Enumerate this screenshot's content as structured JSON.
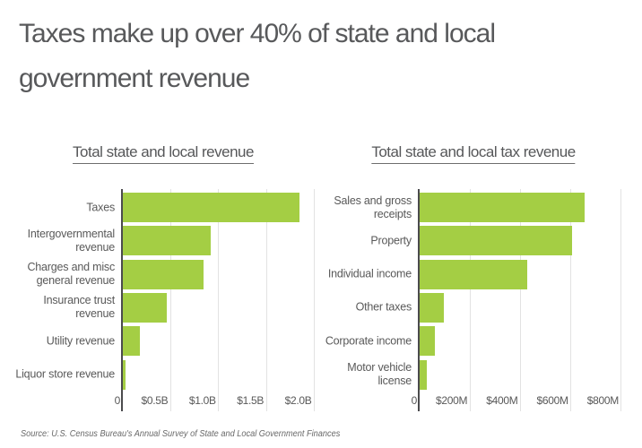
{
  "title": {
    "line1": "Taxes make up over 40% of state and local",
    "line2": "government revenue"
  },
  "source": "Source:  U.S. Census Bureau's Annual Survey of State and Local Government Finances",
  "colors": {
    "bar": "#a4ce44",
    "axis": "#4b4b4d",
    "grid": "#e2e2e2",
    "text": "#595959",
    "title_text": "#58595b"
  },
  "chart_data": [
    {
      "type": "bar",
      "orientation": "horizontal",
      "title": "Total state and local revenue",
      "unit": "billions of dollars",
      "categories": [
        "Taxes",
        "Intergovernmental revenue",
        "Charges and misc general revenue",
        "Insurance trust revenue",
        "Utility revenue",
        "Liquor store revenue"
      ],
      "label_lines": [
        [
          "Taxes"
        ],
        [
          "Intergovernmental",
          "revenue"
        ],
        [
          "Charges and misc",
          "general revenue"
        ],
        [
          "Insurance trust",
          "revenue"
        ],
        [
          "Utility revenue"
        ],
        [
          "Liquor store revenue"
        ]
      ],
      "values": [
        1.85,
        0.92,
        0.84,
        0.46,
        0.18,
        0.03
      ],
      "ticks": [
        {
          "value": 0,
          "label": "0"
        },
        {
          "value": 0.5,
          "label": "$0.5B"
        },
        {
          "value": 1.0,
          "label": "$1.0B"
        },
        {
          "value": 1.5,
          "label": "$1.5B"
        },
        {
          "value": 2.0,
          "label": "$2.0B"
        }
      ],
      "xmax": 2.08,
      "xlabel": "",
      "grid": true,
      "legend": false
    },
    {
      "type": "bar",
      "orientation": "horizontal",
      "title": "Total state and local tax revenue",
      "unit": "millions of dollars",
      "categories": [
        "Sales and gross receipts",
        "Property",
        "Individual income",
        "Other taxes",
        "Corporate income",
        "Motor vehicle license"
      ],
      "label_lines": [
        [
          "Sales and gross",
          "receipts"
        ],
        [
          "Property"
        ],
        [
          "Individual income"
        ],
        [
          "Other taxes"
        ],
        [
          "Corporate income"
        ],
        [
          "Motor vehicle",
          "license"
        ]
      ],
      "values": [
        655,
        605,
        425,
        95,
        60,
        30
      ],
      "ticks": [
        {
          "value": 0,
          "label": "0"
        },
        {
          "value": 200,
          "label": "$200M"
        },
        {
          "value": 400,
          "label": "$400M"
        },
        {
          "value": 600,
          "label": "$600M"
        },
        {
          "value": 800,
          "label": "$800M"
        }
      ],
      "xmax": 825,
      "xlabel": "",
      "grid": true,
      "legend": false
    }
  ]
}
